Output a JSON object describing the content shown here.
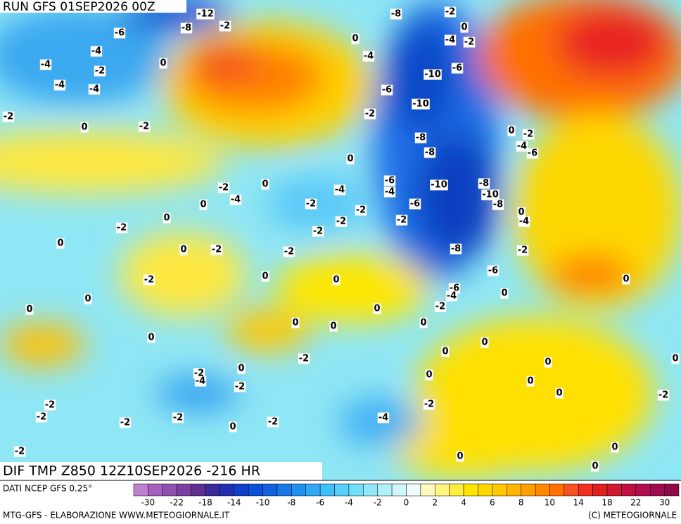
{
  "header": {
    "run": "RUN GFS 01SEP2026 00Z"
  },
  "map": {
    "labels": [
      "-12",
      "-8",
      "-2",
      "-6",
      "-4",
      "-4",
      "-2",
      "-4",
      "-4",
      "0",
      "-2",
      "0",
      "-2",
      "-8",
      "-2",
      "0",
      "-4",
      "-2",
      "-4",
      "0",
      "-10",
      "-6",
      "-6",
      "-10",
      "-2",
      "-8",
      "-8",
      "0",
      "-2",
      "-4",
      "-6",
      "0",
      "-6",
      "-4",
      "-4",
      "-10",
      "-8",
      "-10",
      "-8",
      "-6",
      "-2",
      "-2",
      "-2",
      "-2",
      "-2",
      "0",
      "-4",
      "0",
      "0",
      "-2",
      "0",
      "0",
      "-2",
      "-2",
      "-2",
      "-8",
      "-2",
      "0",
      "-4",
      "-6",
      "0",
      "-2",
      "0",
      "0",
      "-6",
      "-4",
      "-2",
      "0",
      "0",
      "0",
      "0",
      "0",
      "0",
      "0",
      "0",
      "0",
      "0",
      "-2",
      "0",
      "-2",
      "-4",
      "-2",
      "0",
      "0",
      "0",
      "0",
      "-2",
      "-2",
      "-2",
      "-2",
      "-2",
      "-2",
      "0",
      "-2",
      "-4",
      "0",
      "0",
      "0",
      "-2",
      "0"
    ]
  },
  "footer": {
    "product": "DIF TMP Z850 12Z10SEP2026 -216 HR",
    "source": "DATI NCEP GFS 0.25°",
    "credit": "MTG-GFS - ELABORAZIONE WWW.METEOGIORNALE.IT",
    "copyright": "(C) METEOGIORNALE"
  },
  "legend": {
    "colors": [
      "#c080d0",
      "#a860c0",
      "#9050b0",
      "#7a3fa0",
      "#602f90",
      "#3c2a9a",
      "#2030b0",
      "#1040c8",
      "#0a50d8",
      "#1060e0",
      "#1878e8",
      "#2090f0",
      "#30a8f5",
      "#40c0f8",
      "#58d0fa",
      "#70def8",
      "#90e8f8",
      "#b0f0f8",
      "#d0f8fa",
      "#f0fcfc",
      "#fffac0",
      "#fff580",
      "#ffee40",
      "#ffe600",
      "#ffd800",
      "#ffc800",
      "#ffb400",
      "#ffa000",
      "#ff8800",
      "#ff7000",
      "#f85020",
      "#f03020",
      "#e02020",
      "#d01830",
      "#c01040",
      "#b01050",
      "#a00a50",
      "#900848"
    ],
    "labels": [
      "-30",
      "-22",
      "-18",
      "-14",
      "-10",
      "-8",
      "-6",
      "-4",
      "-2",
      "0",
      "2",
      "4",
      "6",
      "8",
      "10",
      "14",
      "18",
      "22",
      "30"
    ]
  }
}
